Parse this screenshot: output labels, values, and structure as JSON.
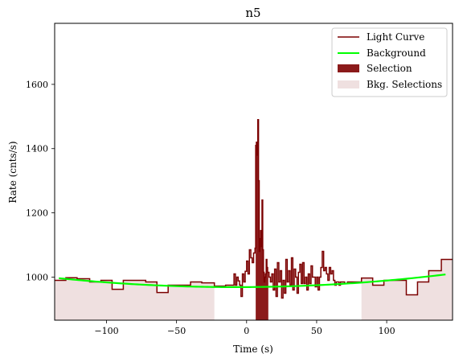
{
  "chart_data": {
    "type": "line",
    "title": "n5",
    "xlabel": "Time (s)",
    "ylabel": "Rate (cnts/s)",
    "xlim": [
      -137,
      147
    ],
    "ylim": [
      866,
      1790
    ],
    "xticks": [
      -100,
      -50,
      0,
      50,
      100
    ],
    "xtick_labels": [
      "−100",
      "−50",
      "0",
      "50",
      "100"
    ],
    "yticks": [
      1000,
      1200,
      1400,
      1600
    ],
    "ytick_labels": [
      "1000",
      "1200",
      "1400",
      "1600"
    ],
    "grid": false,
    "legend": {
      "placement": "top-right",
      "entries": [
        "Light Curve",
        "Background",
        "Selection",
        "Bkg. Selections"
      ]
    },
    "colors": {
      "light_curve": "#7b0000",
      "background": "#00ff00",
      "selection": "#8b1a1a",
      "bkg_selection": "#efe0e0"
    },
    "bkg_selections": [
      [
        -137,
        -23
      ],
      [
        82,
        147
      ]
    ],
    "selection_interval": [
      6.5,
      15.5
    ],
    "background_poly": {
      "x": [
        -137,
        0,
        147
      ],
      "y": [
        998,
        969,
        1011
      ]
    },
    "light_curve": {
      "x": [
        -137,
        -129,
        -121,
        -112,
        -104,
        -96,
        -88,
        -80,
        -72,
        -64,
        -56,
        -48,
        -40,
        -32,
        -23,
        -15,
        -9,
        -8,
        -7,
        -6,
        -5,
        -4,
        -3,
        -2,
        -1,
        0,
        1,
        2,
        3,
        4,
        5,
        6,
        6.5,
        7,
        7.5,
        8,
        8.5,
        9,
        9.5,
        10,
        10.5,
        11,
        11.5,
        12,
        12.5,
        13,
        13.5,
        14,
        14.5,
        15,
        16,
        17,
        18,
        19,
        20,
        21,
        22,
        23,
        24,
        25,
        26,
        27,
        28,
        29,
        30,
        31,
        32,
        33,
        34,
        35,
        36,
        37,
        38,
        39,
        40,
        41,
        42,
        43,
        44,
        45,
        46,
        47,
        48,
        49,
        50,
        51,
        52,
        53,
        54,
        55,
        56,
        57,
        58,
        59,
        60,
        61,
        62,
        63,
        64,
        66,
        67,
        68,
        70,
        72,
        75,
        82,
        90,
        98,
        106,
        114,
        122,
        130,
        139,
        147
      ],
      "y": [
        990,
        998,
        995,
        985,
        990,
        962,
        990,
        990,
        985,
        952,
        975,
        975,
        985,
        982,
        972,
        975,
        1010,
        975,
        1000,
        988,
        975,
        940,
        1010,
        985,
        1018,
        1050,
        1010,
        1085,
        1060,
        1045,
        1075,
        1090,
        1410,
        1420,
        1380,
        1490,
        1300,
        1080,
        1120,
        1145,
        1095,
        1240,
        1085,
        1015,
        985,
        1000,
        1010,
        1055,
        1030,
        1015,
        1000,
        985,
        1010,
        960,
        1025,
        940,
        1045,
        985,
        1020,
        935,
        990,
        950,
        1055,
        985,
        1020,
        975,
        1060,
        960,
        1025,
        1000,
        950,
        1015,
        1040,
        980,
        1045,
        980,
        1000,
        960,
        1010,
        980,
        1035,
        1000,
        1000,
        970,
        1000,
        960,
        1000,
        1030,
        1080,
        1020,
        1030,
        1010,
        990,
        1030,
        1010,
        1020,
        990,
        975,
        985,
        975,
        985,
        985,
        980,
        985,
        985,
        997,
        975,
        990,
        990,
        945,
        985,
        1020,
        1055,
        1055
      ]
    }
  }
}
